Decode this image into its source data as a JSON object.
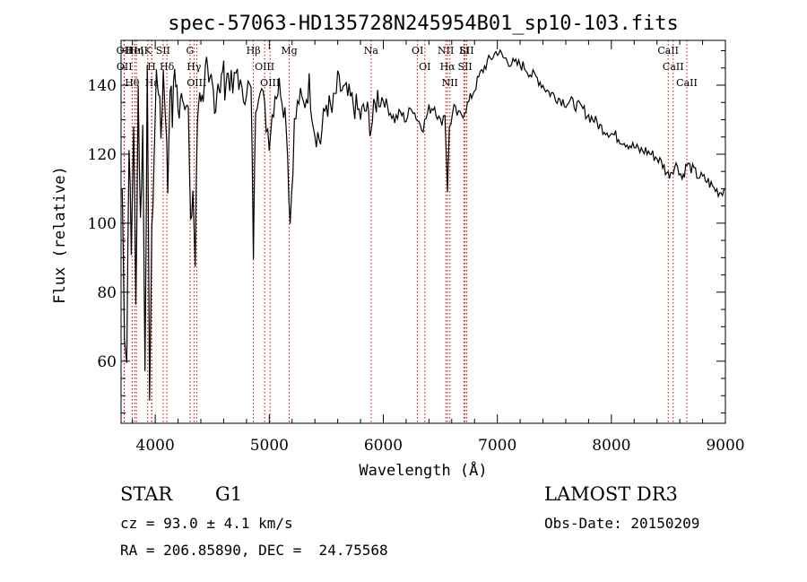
{
  "chart_data": {
    "type": "line",
    "title": "spec-57063-HD135728N245954B01_sp10-103.fits",
    "xlabel": "Wavelength (Å)",
    "ylabel": "Flux (relative)",
    "xlim": [
      3700,
      9000
    ],
    "ylim": [
      42,
      153
    ],
    "xticks": [
      4000,
      5000,
      6000,
      7000,
      8000,
      9000
    ],
    "yticks": [
      60,
      80,
      100,
      120,
      140
    ],
    "series": [
      {
        "name": "flux",
        "x": [
          3710,
          3730,
          3750,
          3770,
          3790,
          3810,
          3830,
          3850,
          3870,
          3890,
          3910,
          3930,
          3950,
          3970,
          3990,
          4010,
          4030,
          4050,
          4070,
          4090,
          4110,
          4130,
          4150,
          4170,
          4190,
          4210,
          4230,
          4250,
          4270,
          4290,
          4310,
          4330,
          4350,
          4370,
          4390,
          4410,
          4430,
          4450,
          4470,
          4490,
          4510,
          4530,
          4550,
          4570,
          4590,
          4610,
          4640,
          4680,
          4720,
          4760,
          4800,
          4840,
          4861,
          4880,
          4920,
          4960,
          5000,
          5050,
          5100,
          5150,
          5183,
          5220,
          5260,
          5300,
          5350,
          5400,
          5450,
          5500,
          5550,
          5600,
          5650,
          5700,
          5750,
          5800,
          5850,
          5893,
          5950,
          6000,
          6050,
          6100,
          6150,
          6200,
          6250,
          6300,
          6350,
          6400,
          6450,
          6500,
          6540,
          6563,
          6580,
          6620,
          6660,
          6700,
          6750,
          6800,
          6850,
          6900,
          6950,
          7000,
          7050,
          7100,
          7150,
          7200,
          7250,
          7300,
          7350,
          7400,
          7450,
          7500,
          7550,
          7600,
          7650,
          7700,
          7750,
          7800,
          7850,
          7900,
          7950,
          8000,
          8050,
          8100,
          8150,
          8200,
          8250,
          8300,
          8350,
          8400,
          8450,
          8498,
          8542,
          8580,
          8620,
          8662,
          8700,
          8750,
          8800,
          8850,
          8900,
          8950,
          9000
        ],
        "values": [
          110,
          70,
          60,
          125,
          90,
          130,
          75,
          140,
          100,
          128,
          60,
          142,
          52,
          95,
          120,
          143,
          140,
          125,
          144,
          133,
          110,
          142,
          130,
          145,
          139,
          128,
          141,
          135,
          138,
          132,
          97,
          110,
          88,
          130,
          140,
          135,
          142,
          145,
          137,
          141,
          138,
          134,
          143,
          136,
          146,
          140,
          144,
          138,
          145,
          136,
          140,
          138,
          92,
          135,
          142,
          132,
          125,
          138,
          140,
          130,
          100,
          128,
          136,
          134,
          140,
          127,
          124,
          135,
          132,
          140,
          138,
          136,
          134,
          131,
          133,
          128,
          137,
          136,
          133,
          130,
          132,
          130,
          134,
          130,
          128,
          133,
          134,
          129,
          132,
          110,
          128,
          133,
          131,
          132,
          135,
          139,
          143,
          146,
          148,
          150,
          148,
          147,
          146,
          146,
          145,
          143,
          142,
          140,
          138,
          137,
          136,
          135,
          135,
          134,
          133,
          131,
          130,
          128,
          127,
          126,
          125,
          124,
          123,
          122,
          121,
          121,
          120,
          119,
          117,
          114,
          116,
          117,
          113,
          117,
          116,
          114,
          113,
          112,
          110,
          109,
          110
        ]
      }
    ],
    "lines": [
      {
        "label": "Hθ",
        "x": 3797
      },
      {
        "label": "OII",
        "x": 3727
      },
      {
        "label": "OII",
        "x": 3729
      },
      {
        "label": "HeI",
        "x": 3820
      },
      {
        "label": "Hη",
        "x": 3835
      },
      {
        "label": "K",
        "x": 3934
      },
      {
        "label": "Hε",
        "x": 3970
      },
      {
        "label": "H",
        "x": 3968
      },
      {
        "label": "SII",
        "x": 4069
      },
      {
        "label": "Hδ",
        "x": 4102
      },
      {
        "label": "OIII",
        "x": 4363
      },
      {
        "label": "Hγ",
        "x": 4340
      },
      {
        "label": "G",
        "x": 4305
      },
      {
        "label": "Hβ",
        "x": 4861
      },
      {
        "label": "OIII",
        "x": 4959
      },
      {
        "label": "OIII",
        "x": 5007
      },
      {
        "label": "Mg",
        "x": 5175
      },
      {
        "label": "Na",
        "x": 5893
      },
      {
        "label": "OI",
        "x": 6300
      },
      {
        "label": "OI",
        "x": 6364
      },
      {
        "label": "Hα",
        "x": 6563
      },
      {
        "label": "NII",
        "x": 6548
      },
      {
        "label": "NII",
        "x": 6584
      },
      {
        "label": "SII",
        "x": 6717
      },
      {
        "label": "SII",
        "x": 6731
      },
      {
        "label": "Li",
        "x": 6708
      },
      {
        "label": "CaII",
        "x": 8498
      },
      {
        "label": "CaII",
        "x": 8542
      },
      {
        "label": "CaII",
        "x": 8662
      }
    ]
  },
  "info": {
    "object_type": "STAR",
    "subclass": "G1",
    "survey": "LAMOST DR3",
    "cz_line": "cz = 93.0 ± 4.1 km/s",
    "obs_date": "Obs-Date: 20150209",
    "coords": "RA = 206.85890, DEC =  24.75568"
  },
  "colors": {
    "spectrum": "#000000",
    "line_markers": "#cc0000"
  }
}
